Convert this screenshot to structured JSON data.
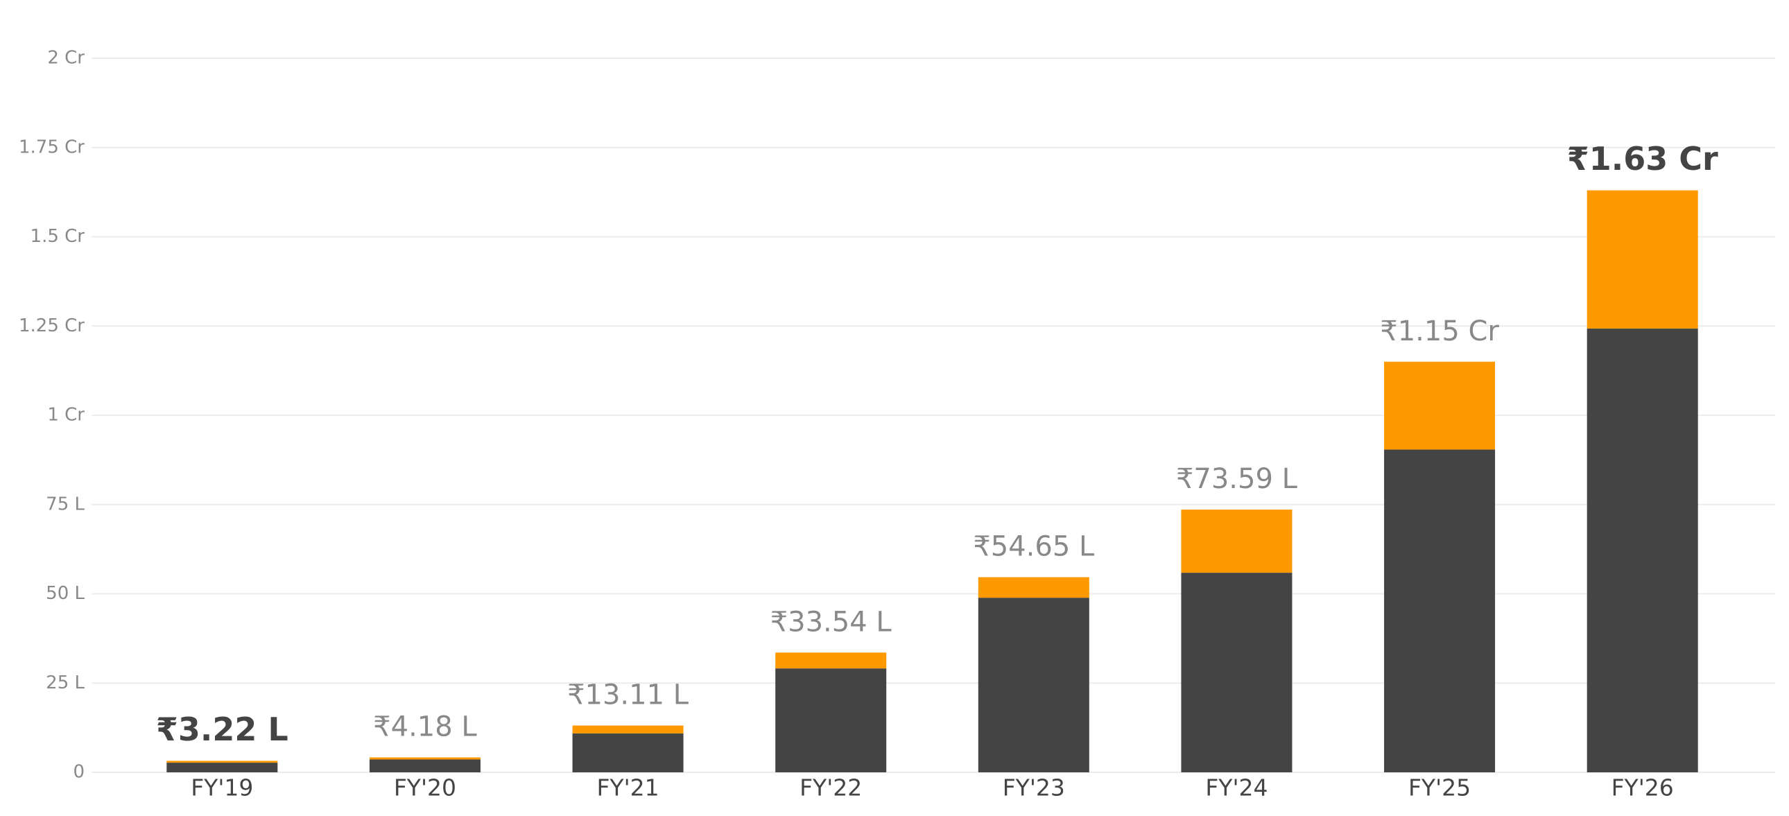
{
  "chart_data": {
    "type": "stacked_bar",
    "categories": [
      "FY'19",
      "FY'20",
      "FY'21",
      "FY'22",
      "FY'23",
      "FY'24",
      "FY'25",
      "FY'26"
    ],
    "series": [
      {
        "color": "#444444",
        "values": [
          2.7,
          3.6,
          10.9,
          29.1,
          48.9,
          55.9,
          90.4,
          124.3
        ]
      },
      {
        "color": "#ff9900",
        "values": [
          0.52,
          0.58,
          2.21,
          4.44,
          5.75,
          17.69,
          24.6,
          38.7
        ]
      }
    ],
    "totals": [
      3.22,
      4.18,
      13.11,
      33.54,
      54.65,
      73.59,
      115,
      163
    ],
    "total_labels": [
      "₹3.22 L",
      "₹4.18 L",
      "₹13.11 L",
      "₹33.54 L",
      "₹54.65 L",
      "₹73.59 L",
      "₹1.15 Cr",
      "₹1.63 Cr"
    ],
    "emphasized_categories": [
      "FY'19",
      "FY'26"
    ],
    "ylim": [
      0,
      200
    ],
    "yticks": [
      0,
      {
        "value": 25,
        "label": "25 L"
      },
      {
        "value": 50,
        "label": "50 L"
      },
      {
        "value": 75,
        "label": "75 L"
      },
      {
        "value": 100,
        "label": "1 Cr"
      },
      {
        "value": 125,
        "label": "1.25 Cr"
      },
      {
        "value": 150,
        "label": "1.5 Cr"
      },
      {
        "value": 175,
        "label": "1.75 Cr"
      },
      {
        "value": 200,
        "label": "2 Cr"
      }
    ],
    "grid": true
  }
}
